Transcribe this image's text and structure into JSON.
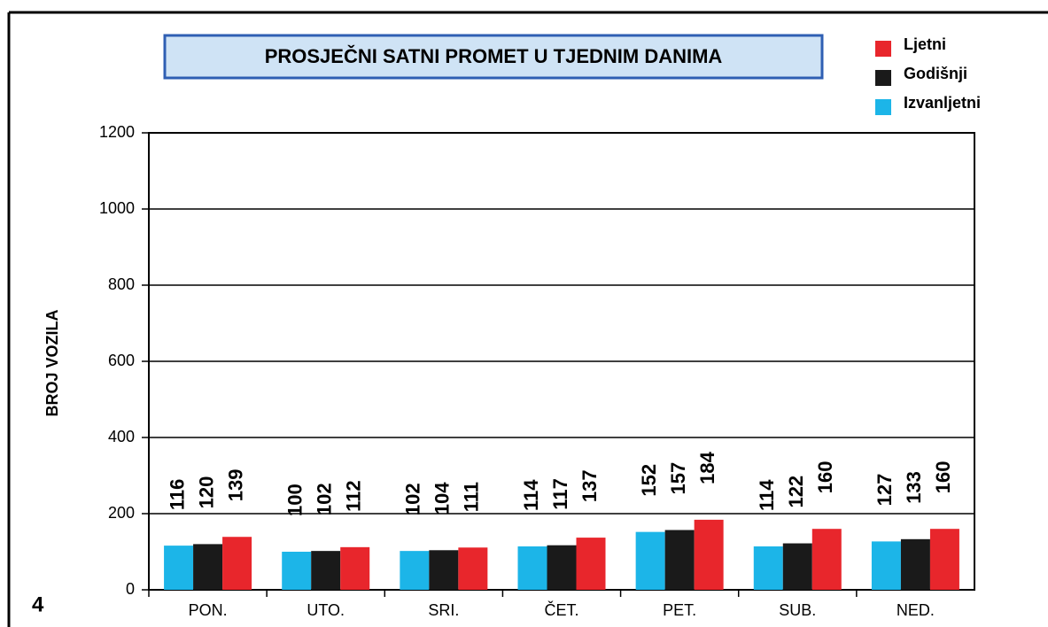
{
  "page_number": "4",
  "chart_data": {
    "type": "bar",
    "title": "PROSJEČNI SATNI PROMET U TJEDNIM DANIMA",
    "y_label": "BROJ VOZILA",
    "categories": [
      "PON.",
      "UTO.",
      "SRI.",
      "ČET.",
      "PET.",
      "SUB.",
      "NED."
    ],
    "series": [
      {
        "name": "Izvanljetni",
        "color": "#1cb5e8",
        "values": [
          116,
          100,
          102,
          114,
          152,
          114,
          127
        ]
      },
      {
        "name": "Godišnji",
        "color": "#1a1a1a",
        "values": [
          120,
          102,
          104,
          117,
          157,
          122,
          133
        ]
      },
      {
        "name": "Ljetni",
        "color": "#e8262c",
        "values": [
          139,
          112,
          111,
          137,
          184,
          160,
          160
        ]
      }
    ],
    "ylim": [
      0,
      1200
    ],
    "yticks": [
      0,
      200,
      400,
      600,
      800,
      1000,
      1200
    ],
    "grid": true,
    "legend": "top-right"
  }
}
